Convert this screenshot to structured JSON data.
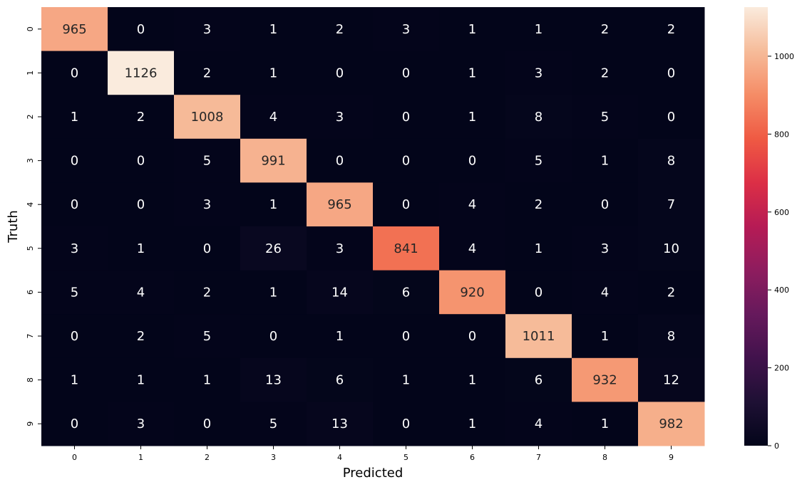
{
  "chart_data": {
    "type": "heatmap",
    "title": "",
    "xlabel": "Predicted",
    "ylabel": "Truth",
    "x_categories": [
      "0",
      "1",
      "2",
      "3",
      "4",
      "5",
      "6",
      "7",
      "8",
      "9"
    ],
    "y_categories": [
      "0",
      "1",
      "2",
      "3",
      "4",
      "5",
      "6",
      "7",
      "8",
      "9"
    ],
    "values": [
      [
        965,
        0,
        3,
        1,
        2,
        3,
        1,
        1,
        2,
        2
      ],
      [
        0,
        1126,
        2,
        1,
        0,
        0,
        1,
        3,
        2,
        0
      ],
      [
        1,
        2,
        1008,
        4,
        3,
        0,
        1,
        8,
        5,
        0
      ],
      [
        0,
        0,
        5,
        991,
        0,
        0,
        0,
        5,
        1,
        8
      ],
      [
        0,
        0,
        3,
        1,
        965,
        0,
        4,
        2,
        0,
        7
      ],
      [
        3,
        1,
        0,
        26,
        3,
        841,
        4,
        1,
        3,
        10
      ],
      [
        5,
        4,
        2,
        1,
        14,
        6,
        920,
        0,
        4,
        2
      ],
      [
        0,
        2,
        5,
        0,
        1,
        0,
        0,
        1011,
        1,
        8
      ],
      [
        1,
        1,
        1,
        13,
        6,
        1,
        1,
        6,
        932,
        12
      ],
      [
        0,
        3,
        0,
        5,
        13,
        0,
        1,
        4,
        1,
        982
      ]
    ],
    "colorbar": {
      "min": 0,
      "max": 1126,
      "ticks": [
        0,
        200,
        400,
        600,
        800,
        1000
      ],
      "colormap": "rocket"
    },
    "legend": "colorbar-right"
  }
}
